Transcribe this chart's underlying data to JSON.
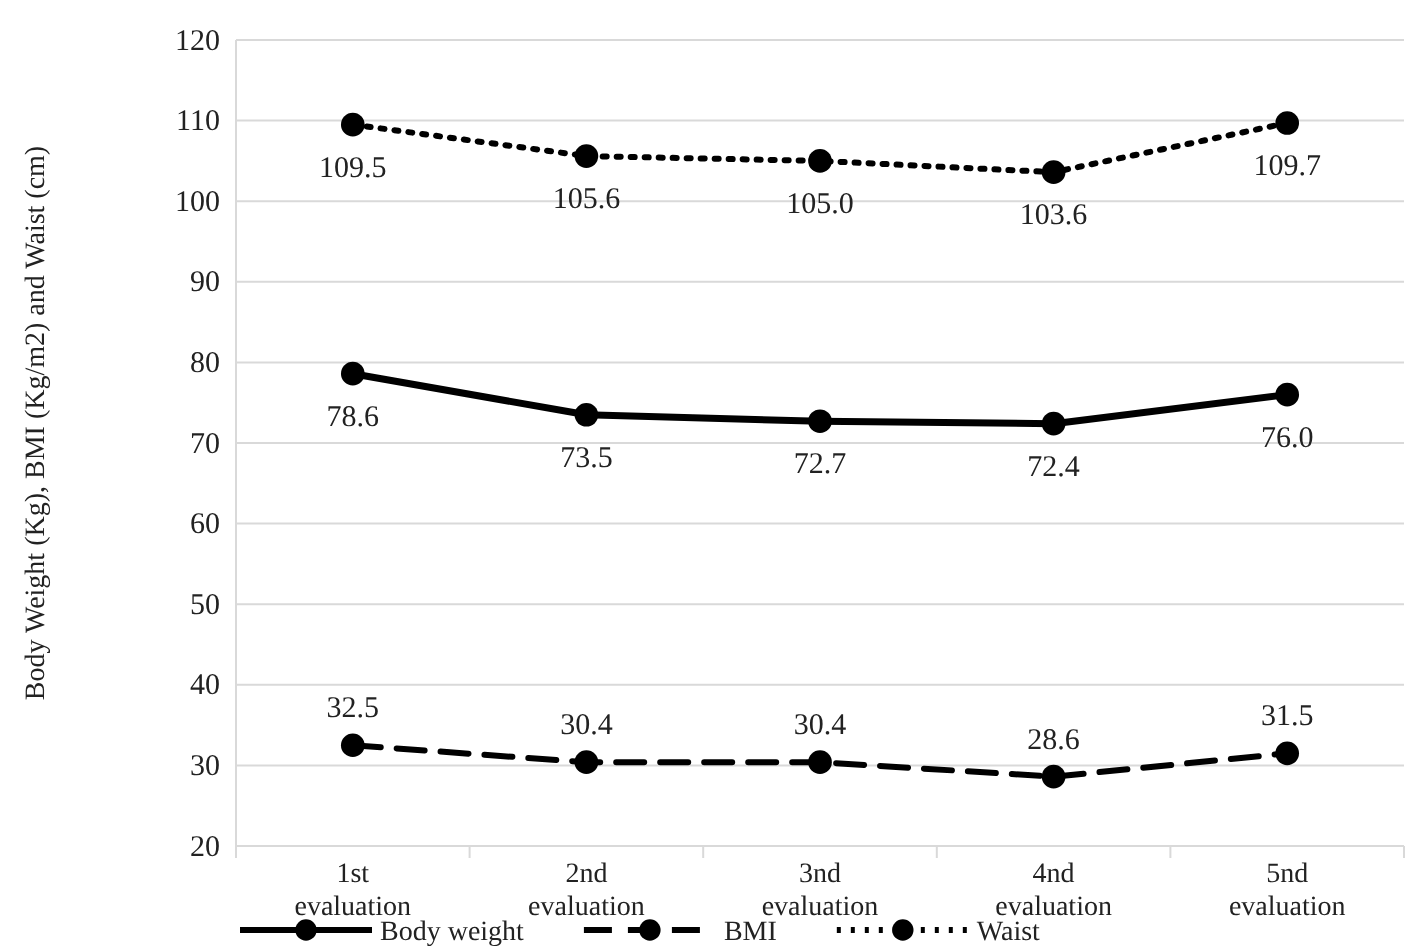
{
  "chart_data": {
    "type": "line",
    "ylabel": "Body Weight (Kg), BMI (Kg/m2) and Waist (cm)",
    "categories": [
      "1st evaluation",
      "2nd evaluation",
      "3nd evaluation",
      "4nd evaluation",
      "5nd evaluation"
    ],
    "series": [
      {
        "name": "Body weight",
        "color": "#000000",
        "line_style": "solid",
        "values": [
          78.6,
          73.5,
          72.7,
          72.4,
          76.0
        ],
        "value_labels": [
          "78.6",
          "73.5",
          "72.7",
          "72.4",
          "76.0"
        ]
      },
      {
        "name": "BMI",
        "color": "#000000",
        "line_style": "dashed",
        "values": [
          32.5,
          30.4,
          30.4,
          28.6,
          31.5
        ],
        "value_labels": [
          "32.5",
          "30.4",
          "30.4",
          "28.6",
          "31.5"
        ]
      },
      {
        "name": "Waist",
        "color": "#000000",
        "line_style": "dotted",
        "values": [
          109.5,
          105.6,
          105.0,
          103.6,
          109.7
        ],
        "value_labels": [
          "109.5",
          "105.6",
          "105.0",
          "103.6",
          "109.7"
        ]
      }
    ],
    "ylim": [
      20,
      120
    ],
    "yticks": [
      20,
      30,
      40,
      50,
      60,
      70,
      80,
      90,
      100,
      110,
      120
    ],
    "grid": "y",
    "legend": "bottom",
    "marker": "circle"
  }
}
